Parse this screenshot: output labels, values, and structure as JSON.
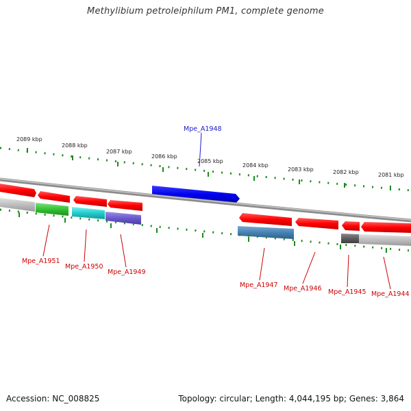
{
  "title": "Methylibium petroleiphilum PM1, complete genome",
  "accession": "Accession: NC_008825",
  "summary": "Topology: circular; Length: 4,044,195 bp; Genes: 3,864",
  "colors": {
    "forward_gene": "#ff0000",
    "highlight_gene": "#0000ee",
    "backbone": "#8c8c8c",
    "tick": "#1a8a1a",
    "label_red": "#cc0000",
    "label_blue": "#1a1acc"
  },
  "scale_labels": [
    "2089 kbp",
    "2088 kbp",
    "2087 kbp",
    "2086 kbp",
    "2085 kbp",
    "2084 kbp",
    "2083 kbp",
    "2082 kbp",
    "2081 kbp"
  ],
  "genes": [
    {
      "name": "Mpe_A1951",
      "color": "#cc0000"
    },
    {
      "name": "Mpe_A1950",
      "color": "#cc0000"
    },
    {
      "name": "Mpe_A1949",
      "color": "#cc0000"
    },
    {
      "name": "Mpe_A1948",
      "color": "#1a1acc"
    },
    {
      "name": "Mpe_A1947",
      "color": "#cc0000"
    },
    {
      "name": "Mpe_A1946",
      "color": "#cc0000"
    },
    {
      "name": "Mpe_A1945",
      "color": "#cc0000"
    },
    {
      "name": "Mpe_A1944",
      "color": "#cc0000"
    }
  ]
}
